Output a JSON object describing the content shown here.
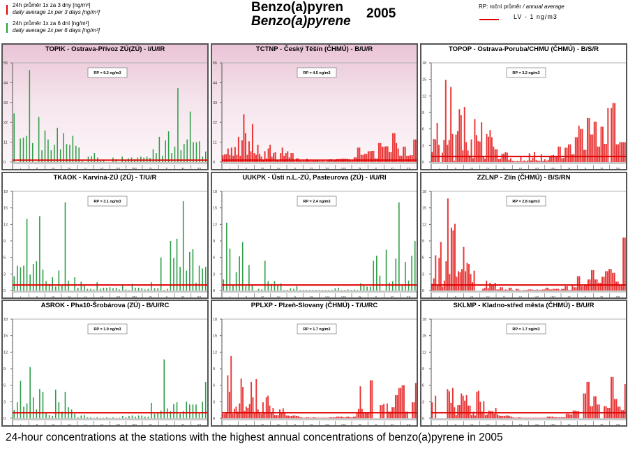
{
  "header": {
    "title_cz": "Benzo(a)pyren",
    "title_en": "Benzo(a)pyrene",
    "year": "2005",
    "legend_left": [
      {
        "label_cz": "24h průměr 1x za 3 dny [ng/m³]",
        "label_en": "daily average 1x per 3 days [ng/m³]",
        "color": "#e00000"
      },
      {
        "label_cz": "24h průměr 1x za 6 dní [ng/m³]",
        "label_en": "daily average 1x per 6 days [ng/m³]",
        "color": "#22a03a"
      }
    ],
    "legend_right": {
      "rp_label_cz": "RP: roční průměr",
      "rp_label_en": "/ annual average",
      "lv_label": "LV   - 1 ng/m3",
      "lv_color": "#e00000"
    }
  },
  "caption": "24-hour concentrations at the stations with the highest annual concentrations of benzo(a)pyrene in 2005",
  "chart_data": [
    {
      "type": "bar",
      "title": "TOPIK - Ostrava-Přívoz ZÚ(ZÚ) - I/U/IR",
      "annotation": "RP = 9.2 ng/m3",
      "color": "#22a03a",
      "sampling": "1x per 6 days",
      "ylim": [
        0,
        55
      ],
      "yticks": [
        "0",
        "11",
        "22",
        "33",
        "44",
        "55"
      ],
      "limit_value": 1,
      "categories": [
        "I",
        "II",
        "III",
        "IV",
        "V",
        "VI",
        "VII",
        "VIII",
        "IX",
        "X",
        "XI",
        "XII"
      ],
      "bg": "pink",
      "values": [
        27,
        0,
        13,
        13.5,
        14.5,
        51,
        10.5,
        0,
        25,
        6.5,
        17.5,
        12.5,
        6.5,
        9.5,
        19,
        7,
        16,
        10,
        9.5,
        14.5,
        9,
        8,
        1,
        0,
        3,
        3.2,
        5,
        2.5,
        1,
        1,
        0,
        0,
        2.5,
        1.5,
        0,
        3,
        1,
        2,
        2.5,
        1.5,
        2.5,
        3,
        2.5,
        3,
        2.3,
        7,
        5,
        14,
        3.5,
        12,
        17,
        5,
        8.5,
        41,
        6.5,
        10,
        12.5,
        28,
        11,
        11,
        11.5,
        3,
        5.8
      ]
    },
    {
      "type": "bar",
      "title": "TCTNP - Český Těšín (ČHMÚ) - B/U/R",
      "annotation": "RP = 4.5 ng/m3",
      "color": "#e00000",
      "sampling": "1x per 3 days",
      "ylim": [
        0,
        55
      ],
      "yticks": [
        "0",
        "11",
        "22",
        "33",
        "44",
        "55"
      ],
      "limit_value": 1,
      "categories": [
        "I",
        "II",
        "III",
        "IV",
        "V",
        "VI",
        "VII",
        "VIII",
        "IX",
        "X",
        "XI",
        "XII"
      ],
      "bg": "pink",
      "values": [
        3.8,
        4.2,
        4.3,
        7.5,
        4,
        8,
        3.5,
        8.3,
        4,
        14,
        3.5,
        12,
        26.5,
        16,
        4,
        11.5,
        6,
        21,
        5,
        4,
        9.5,
        4.5,
        3,
        1,
        6,
        2,
        7.5,
        9.5,
        3,
        5,
        5.5,
        1,
        0.5,
        5,
        8,
        3.5,
        5,
        6,
        2.5,
        5,
        5,
        0.5,
        2,
        2,
        0.5,
        0.5,
        0.5,
        0.5,
        1.8,
        1,
        0.5,
        0.5,
        0.5,
        0.8,
        1,
        0.5,
        0.3,
        1,
        0.3,
        0.3,
        0.5,
        1.5,
        1.5,
        0.6,
        1.3,
        1.6,
        1.7,
        1.7,
        1.8,
        1.8,
        1.8,
        1.8,
        1.5,
        0.5,
        0.6,
        2.6,
        2.6,
        8,
        8,
        4,
        4,
        4.5,
        4.5,
        6,
        6,
        6.2,
        6.2,
        2,
        2,
        10.5,
        10.5,
        8.5,
        8.5,
        8.7,
        8.7,
        5.5,
        5.5,
        16,
        16,
        10.5,
        7.5,
        3.5,
        3.5,
        8.5,
        8.5,
        3.5,
        3.5,
        3.8,
        3.8,
        12.5,
        12.5
      ]
    },
    {
      "type": "bar",
      "title": "TOPOP - Ostrava-Poruba/CHMU (ČHMÚ) - B/S/R",
      "annotation": "RP = 3.2 ng/m3",
      "color": "#e00000",
      "sampling": "1x per 3 days",
      "ylim": [
        0,
        18
      ],
      "yticks": [
        "0",
        "3",
        "6",
        "9",
        "12",
        "15",
        "18"
      ],
      "limit_value": 1,
      "categories": [
        "I",
        "II",
        "III",
        "IV",
        "V",
        "VI",
        "VII",
        "VIII",
        "IX",
        "X",
        "XI",
        "XII"
      ],
      "bg": "white",
      "values": [
        1.8,
        4.2,
        4.1,
        7.1,
        3.1,
        0,
        1.7,
        4,
        14.9,
        3.1,
        4,
        13.6,
        5.1,
        0.2,
        5,
        5.6,
        9.6,
        8.5,
        2.1,
        10,
        3.6,
        2.1,
        1.2,
        4.1,
        0.7,
        7.8,
        4.9,
        3.8,
        3.7,
        7.2,
        1,
        0.6,
        5.1,
        4.6,
        5.8,
        4.5,
        2.8,
        2.3,
        2.3,
        0.5,
        0.6,
        1.5,
        1.5,
        1.8,
        1.7,
        0.4,
        0.7,
        0.2,
        0.2,
        0.1,
        0.2,
        0.1,
        0.9,
        0.1,
        0.3,
        0.1,
        0.3,
        1.6,
        0.3,
        0.8,
        1.8,
        0.4,
        0.2,
        0.2,
        1.4,
        0.2,
        0.5,
        0.2,
        0.4,
        1,
        1.2,
        1.3,
        1.1,
        1.1,
        2.8,
        2.8,
        0.7,
        0.7,
        2.6,
        2.6,
        3.2,
        3.2,
        1.4,
        1.4,
        4.5,
        4.5,
        6.6,
        6,
        6,
        2.2,
        2.2,
        8,
        8,
        5,
        5,
        7.3,
        7.3,
        2.8,
        2.8,
        6.4,
        6.4,
        3.3,
        3.3,
        9.8,
        0,
        9.8,
        10.7,
        10.7,
        3.2,
        3.2,
        3.6,
        3.6,
        3.6,
        3.6
      ]
    },
    {
      "type": "bar",
      "title": "TKAOK - Karviná-ZÚ (ZÚ) - T/U/R",
      "annotation": "RP = 3.1 ng/m3",
      "color": "#22a03a",
      "sampling": "1x per 6 days",
      "ylim": [
        0,
        18
      ],
      "yticks": [
        "0",
        "3",
        "6",
        "9",
        "12",
        "15",
        "18"
      ],
      "limit_value": 1,
      "categories": [
        "I",
        "II",
        "III",
        "IV",
        "V",
        "VI",
        "VII",
        "VIII",
        "IX",
        "X",
        "XI",
        "XII"
      ],
      "bg": "white",
      "values": [
        2.6,
        4.5,
        4.2,
        4.5,
        13,
        2.9,
        4.8,
        5.3,
        13.5,
        3.8,
        1.7,
        1.2,
        2.4,
        0.7,
        3.6,
        1,
        16,
        1.8,
        0,
        2.4,
        0.5,
        1.6,
        1,
        0.3,
        0.3,
        0.2,
        1.5,
        0.3,
        0.5,
        0.5,
        0.6,
        0.4,
        0.5,
        0.2,
        1,
        0.2,
        0.1,
        1.2,
        0.5,
        0.5,
        0.4,
        0.2,
        0.3,
        1.5,
        0.4,
        0.4,
        6,
        0.1,
        0.3,
        9,
        5.9,
        9.4,
        4.3,
        16.2,
        3.6,
        7,
        7.5,
        1.4,
        4.5,
        4,
        4.3
      ]
    },
    {
      "type": "bar",
      "title": "UUKPK - Ústí n.L.-ZÚ, Pasteurova (ZÚ) - I/U/RI",
      "annotation": "RP = 2.4 ng/m3",
      "color": "#22a03a",
      "sampling": "1x per 6 days",
      "ylim": [
        0,
        18
      ],
      "yticks": [
        "0",
        "3",
        "6",
        "9",
        "12",
        "15",
        "18"
      ],
      "limit_value": 1,
      "categories": [
        "I",
        "II",
        "III",
        "IV",
        "V",
        "VI",
        "VII",
        "VIII",
        "IX",
        "X",
        "XI",
        "XII"
      ],
      "bg": "white",
      "values": [
        2,
        12.3,
        7.6,
        1,
        3.3,
        6.2,
        8.8,
        0.8,
        4.6,
        0.9,
        0,
        0.3,
        0.2,
        5.4,
        1.7,
        1.2,
        1.7,
        0.9,
        1.3,
        0.1,
        0.1,
        0.4,
        0.3,
        0.8,
        0.1,
        0.1,
        0.1,
        0.1,
        0.1,
        0.1,
        0.1,
        0.1,
        0.1,
        0.1,
        0.1,
        0.4,
        0.5,
        0.1,
        0.1,
        0.2,
        0.1,
        0.2,
        0.1,
        1.3,
        1,
        0.7,
        0.7,
        5.4,
        6.3,
        2.7,
        0,
        7.4,
        1.4,
        1.7,
        5.8,
        16,
        1.1,
        5.2,
        1.8,
        6.3,
        9
      ]
    },
    {
      "type": "bar",
      "title": "ZZLNP - Zlín (ČHMÚ) - B/S/RN",
      "annotation": "RP = 2.8 ng/m3",
      "color": "#e00000",
      "sampling": "1x per 3 days",
      "ylim": [
        0,
        18
      ],
      "yticks": [
        "0",
        "3",
        "6",
        "9",
        "12",
        "15",
        "18"
      ],
      "limit_value": 1,
      "categories": [
        "I",
        "II",
        "III",
        "IV",
        "V",
        "VI",
        "VII",
        "VIII",
        "IX",
        "X",
        "XI",
        "XII"
      ],
      "bg": "white",
      "values": [
        1.2,
        2.2,
        6.4,
        1,
        5.9,
        8.8,
        0.7,
        1.8,
        5.3,
        16.7,
        3,
        11.4,
        10.9,
        12.1,
        2.5,
        3.5,
        3.3,
        3.9,
        7.9,
        3.5,
        5,
        4.8,
        3,
        1.5,
        3.6,
        0,
        0,
        0,
        0,
        0.3,
        0.5,
        1.8,
        0.4,
        1.4,
        0.9,
        1.1,
        1.4,
        0.2,
        0.2,
        0.6,
        0.6,
        0.1,
        0.2,
        0.1,
        0.5,
        0.5,
        0.1,
        0,
        0.3,
        0.3,
        0.1,
        0,
        0.1,
        0.1,
        0.1,
        0.2,
        0.2,
        0.2,
        0.1,
        0.1,
        0.2,
        0.1,
        0.1,
        0.2,
        0.2,
        0.5,
        0.5,
        0.2,
        0.2,
        0.3,
        0.3,
        0.3,
        0.3,
        0.1,
        0.3,
        0.3,
        0.8,
        0.8,
        0.1,
        0.1,
        1,
        0.6,
        0.6,
        2.6,
        2.6,
        0.8,
        0.8,
        0.9,
        0.9,
        2,
        2,
        3.7,
        3.7,
        2,
        2,
        1.4,
        1.4,
        2.5,
        2.5,
        3.5,
        3.5,
        3.9,
        3.9,
        3.2,
        3.2,
        1.6,
        1.6,
        1,
        1,
        9.6,
        9.6
      ]
    },
    {
      "type": "bar",
      "title": "ASROK - Pha10-Šrobárova (ZÚ) - B/U/RC",
      "annotation": "RP = 1.9 ng/m3",
      "color": "#22a03a",
      "sampling": "1x per 6 days",
      "ylim": [
        0,
        18
      ],
      "yticks": [
        "0",
        "3",
        "6",
        "9",
        "12",
        "15",
        "18"
      ],
      "limit_value": 1,
      "categories": [
        "I",
        "II",
        "III",
        "IV",
        "V",
        "VI",
        "VII",
        "VIII",
        "IX",
        "X",
        "XI",
        "XII"
      ],
      "bg": "white",
      "values": [
        1.5,
        2.9,
        6.8,
        2.1,
        2.7,
        9.3,
        3.8,
        1.6,
        5.3,
        4.8,
        1,
        0.6,
        0.4,
        5.2,
        2.9,
        1.2,
        4.8,
        2,
        1.6,
        0.8,
        0.2,
        0.5,
        0.6,
        0.2,
        0.2,
        0.1,
        0.2,
        0.1,
        0.1,
        0.2,
        0.1,
        0.2,
        0.1,
        0.1,
        0.4,
        0.2,
        0.4,
        0.5,
        0.3,
        0.5,
        0.5,
        0.3,
        0.3,
        2.8,
        0.8,
        1,
        1.4,
        10.7,
        1.8,
        1.3,
        2.6,
        2.9,
        0.8,
        1.3,
        3,
        2.5,
        2.5,
        2.5,
        1,
        3,
        6.6
      ]
    },
    {
      "type": "bar",
      "title": "PPLXP - Plzeň-Slovany (ČHMÚ) - T/U/RC",
      "annotation": "RP = 1.7 ng/m3",
      "color": "#e00000",
      "sampling": "1x per 3 days",
      "ylim": [
        0,
        18
      ],
      "yticks": [
        "0",
        "3",
        "6",
        "9",
        "12",
        "15",
        "18"
      ],
      "limit_value": 1,
      "categories": [
        "I",
        "II",
        "III",
        "IV",
        "V",
        "VI",
        "VII",
        "VIII",
        "IX",
        "X",
        "XI",
        "XII"
      ],
      "bg": "white",
      "values": [
        0.8,
        0.8,
        1,
        7.8,
        4.8,
        11.3,
        0.8,
        1.7,
        2.1,
        1.2,
        2.7,
        7.2,
        5.7,
        1.3,
        2.1,
        1.9,
        2.6,
        6.6,
        3.8,
        1,
        7.1,
        1.6,
        1,
        0.8,
        2.9,
        0.9,
        3.8,
        4.1,
        2.3,
        0.9,
        1.9,
        0.6,
        0.6,
        0.6,
        1.6,
        1,
        1.8,
        1,
        0.5,
        0.5,
        0.4,
        0.4,
        0.5,
        0.5,
        0.4,
        0.4,
        0.2,
        0.2,
        0.1,
        0.1,
        0.2,
        0.2,
        0.1,
        0.1,
        0.2,
        0.2,
        0.1,
        0.1,
        0.1,
        0.1,
        0.1,
        0.1,
        0.1,
        0.1,
        0.2,
        0.2,
        0.2,
        0.2,
        0.3,
        0.3,
        0.3,
        0.3,
        0.2,
        0.2,
        0.3,
        0.3,
        0.2,
        0.2,
        0.3,
        0.3,
        1,
        1.7,
        5.8,
        1.7,
        1.1,
        1.1,
        1.1,
        1.1,
        6.9,
        6.9,
        0,
        0,
        0,
        0,
        2.4,
        2.4,
        2.6,
        0,
        2.7,
        1.2,
        1.2,
        2,
        2,
        4.2,
        4.2,
        5.5,
        5.5,
        6,
        6,
        1.2,
        1.2,
        0,
        0,
        2.9,
        2.9,
        6.4
      ]
    },
    {
      "type": "bar",
      "title": "SKLMP - Kladno-střed města (ČHMÚ) - B/U/R",
      "annotation": "RP = 1.7 ng/m3",
      "color": "#e00000",
      "sampling": "1x per 3 days",
      "ylim": [
        0,
        18
      ],
      "yticks": [
        "0",
        "3",
        "6",
        "9",
        "12",
        "15",
        "18"
      ],
      "limit_value": 1,
      "categories": [
        "I",
        "II",
        "III",
        "IV",
        "V",
        "VI",
        "VII",
        "VIII",
        "IX",
        "X",
        "XI",
        "XII"
      ],
      "bg": "white",
      "values": [
        2.9,
        0,
        4.1,
        0,
        0,
        0,
        0,
        0,
        0,
        5.3,
        4.9,
        2.8,
        5.5,
        2,
        0.6,
        2.4,
        2.4,
        4.5,
        4.1,
        3.2,
        4.2,
        2.3,
        2.3,
        0.6,
        1.2,
        0.5,
        4.8,
        5,
        3,
        1.2,
        3.1,
        0.6,
        0.7,
        1.4,
        1.3,
        1.3,
        0.8,
        1.9,
        0.7,
        0.5,
        0.4,
        0.4,
        0.4,
        0.5,
        0.5,
        0.4,
        0.3,
        0.2,
        0.1,
        0.1,
        0.2,
        0.2,
        0.1,
        0.1,
        0.1,
        0.1,
        0.1,
        0.1,
        0.1,
        0.1,
        0.1,
        0.1,
        0.1,
        0.1,
        0.1,
        0.1,
        0.1,
        0.3,
        0.3,
        0.3,
        0.3,
        0.2,
        0.2,
        0.2,
        0.2,
        0.2,
        0.2,
        0.2,
        0.8,
        0.8,
        0.7,
        0.7,
        1.4,
        1.4,
        1.3,
        1.3,
        0,
        0,
        4.5,
        4.5,
        6.6,
        6.6,
        2.2,
        2.2,
        4,
        4,
        2.5,
        2.5,
        0,
        0,
        2.2,
        2.2,
        1.9,
        1.9,
        7.5,
        7.5,
        3.5,
        3.5,
        2.1,
        2.1,
        1.5,
        1.5,
        6.2
      ]
    }
  ]
}
